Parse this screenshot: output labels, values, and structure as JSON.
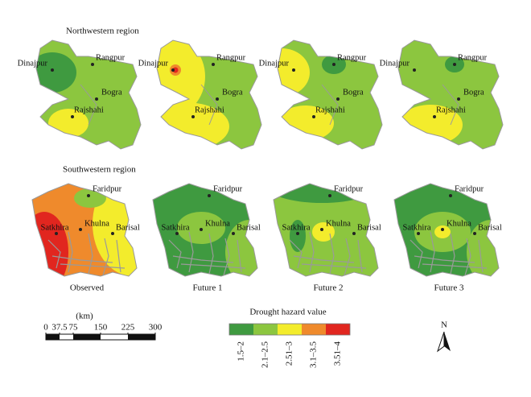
{
  "regions": [
    {
      "title": "Northwestern region",
      "cities": [
        "Dinajpur",
        "Rangpur",
        "Bogra",
        "Rajshahi"
      ]
    },
    {
      "title": "Southwestern region",
      "cities": [
        "Faridpur",
        "Khulna",
        "Satkhira",
        "Barisal"
      ]
    }
  ],
  "panels": [
    "Observed",
    "Future 1",
    "Future 2",
    "Future 3"
  ],
  "scale": {
    "unit": "(km)",
    "ticks": [
      0,
      37.5,
      75,
      150,
      225,
      300
    ]
  },
  "legend": {
    "title": "Drought hazard value",
    "items": [
      {
        "label": "1.5–2",
        "color": "#3f9a40"
      },
      {
        "label": "2.1–2.5",
        "color": "#8cc63f"
      },
      {
        "label": "2.51–3",
        "color": "#f3ec2c"
      },
      {
        "label": "3.1–3.5",
        "color": "#ef8a2c"
      },
      {
        "label": "3.51–4",
        "color": "#e1261f"
      }
    ]
  },
  "north": "N"
}
